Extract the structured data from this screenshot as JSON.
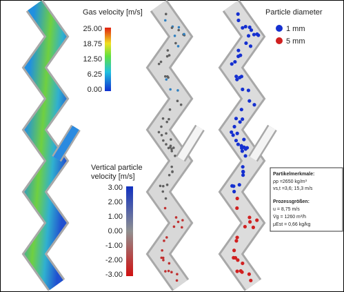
{
  "gas_colorbar": {
    "title": "Gas velocity [m/s]",
    "ticks": [
      "25.00",
      "18.75",
      "12.50",
      "6.25",
      "0.00"
    ]
  },
  "particle_colorbar": {
    "title_lines": [
      "Vertical particle",
      "velocity [m/s]"
    ],
    "ticks": [
      "3.00",
      "2.00",
      "1.00",
      "0.00",
      "-1.00",
      "-2.00",
      "-3.00"
    ]
  },
  "diameter_legend": {
    "title": "Particle diameter",
    "items": [
      "1 mm",
      "5 mm"
    ]
  },
  "info_box": {
    "heading1": "Partikelmerkmale:",
    "lines1": [
      "ρp =2650 kg/m³",
      "vs,t =3,6; 15,3 m/s"
    ],
    "heading2": "Prozessgrößen:",
    "lines2": [
      "u = 8,75 m/s",
      "V̇g = 1260 m³/h",
      "μEst = 0,66 kg/kg"
    ]
  }
}
